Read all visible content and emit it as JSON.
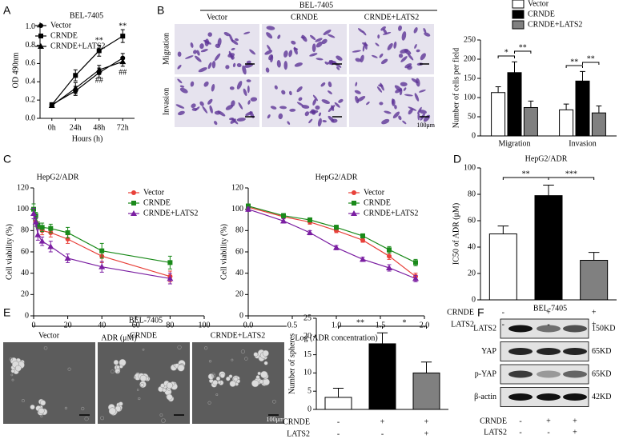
{
  "panel_labels": [
    "A",
    "B",
    "C",
    "D",
    "E",
    "F"
  ],
  "images_B": {
    "title": "BEL-7405",
    "columns": [
      "Vector",
      "CRNDE",
      "CRNDE+LATS2"
    ],
    "rows": [
      "Migration",
      "Invasion"
    ],
    "scale": "100μm"
  },
  "images_E": {
    "title": "BEL-7405",
    "columns": [
      "Vector",
      "CRNDE",
      "CRNDE+LATS2"
    ],
    "scale": "100μm"
  },
  "blot": {
    "title": "BEL-7405",
    "proteins": [
      "LATS2",
      "YAP",
      "p-YAP",
      "β-actin"
    ],
    "sizes": [
      "150KD",
      "65KD",
      "65KD",
      "42KD"
    ],
    "conditions": [
      {
        "name": "CRNDE",
        "marks": [
          "-",
          "+",
          "+"
        ]
      },
      {
        "name": "LATS2",
        "marks": [
          "-",
          "-",
          "+"
        ]
      }
    ]
  },
  "chart_data": [
    {
      "type": "line",
      "title": "BEL-7405",
      "xlabel": "Hours (h)",
      "ylabel": "OD 490nm",
      "categories": [
        "0h",
        "24h",
        "48h",
        "72h"
      ],
      "ylim": [
        0,
        1.05
      ],
      "yticks": [
        {
          "value": 0,
          "label": "0.0"
        },
        0.2,
        0.4,
        0.6,
        0.8,
        {
          "value": 1,
          "label": "1.0"
        }
      ],
      "legend": "upper left",
      "series": [
        {
          "name": "Vector",
          "color": "#000000",
          "marker": "circle",
          "values": [
            0.15,
            0.3,
            0.5,
            0.66
          ],
          "errors": [
            0.02,
            0.05,
            0.05,
            0.05
          ]
        },
        {
          "name": "CRNDE",
          "color": "#000000",
          "marker": "square",
          "values": [
            0.15,
            0.47,
            0.74,
            0.9
          ],
          "errors": [
            0.02,
            0.06,
            0.06,
            0.07
          ]
        },
        {
          "name": "CRNDE+LATS2",
          "color": "#000000",
          "marker": "triangle",
          "values": [
            0.14,
            0.33,
            0.53,
            0.62
          ],
          "errors": [
            0.02,
            0.06,
            0.05,
            0.05
          ]
        }
      ],
      "annotations": [
        "**",
        "**",
        "##",
        "##"
      ]
    },
    {
      "type": "bar",
      "ylabel": "Number of cells per field",
      "categories": [
        "Migration",
        "Invasion"
      ],
      "ylim": [
        0,
        250
      ],
      "yticks": [
        0,
        50,
        100,
        150,
        200,
        250
      ],
      "legend": "upper right",
      "series": [
        {
          "name": "Vector",
          "color": "#ffffff",
          "values": [
            113,
            68
          ],
          "errors": [
            15,
            15
          ]
        },
        {
          "name": "CRNDE",
          "color": "#000000",
          "values": [
            165,
            143
          ],
          "errors": [
            28,
            25
          ]
        },
        {
          "name": "CRNDE+LATS2",
          "color": "#808080",
          "values": [
            74,
            60
          ],
          "errors": [
            17,
            18
          ]
        }
      ],
      "significance": [
        "*",
        "**",
        "**",
        "**"
      ]
    },
    {
      "type": "line",
      "title": "HepG2/ADR",
      "xlabel": "ADR (μM)",
      "ylabel": "Cell viability (%)",
      "x": [
        0,
        1.25,
        2.5,
        5,
        10,
        20,
        40,
        80
      ],
      "xlim": [
        0,
        100
      ],
      "xticks": [
        0,
        20,
        40,
        60,
        80,
        100
      ],
      "ylim": [
        0,
        120
      ],
      "yticks": [
        0,
        20,
        40,
        60,
        80,
        100,
        120
      ],
      "legend": "upper right",
      "series": [
        {
          "name": "Vector",
          "color": "#e8413a",
          "marker": "circle",
          "values": [
            100,
            88,
            84,
            80,
            78,
            72,
            56,
            37
          ],
          "errors": [
            5,
            4,
            3,
            4,
            4,
            4,
            6,
            5
          ]
        },
        {
          "name": "CRNDE",
          "color": "#1a8a1a",
          "marker": "square",
          "values": [
            100,
            94,
            85,
            83,
            82,
            78,
            61,
            50
          ],
          "errors": [
            5,
            3,
            3,
            4,
            4,
            5,
            7,
            6
          ]
        },
        {
          "name": "CRNDE+LATS2",
          "color": "#7b1fa2",
          "marker": "triangle",
          "values": [
            96,
            88,
            76,
            70,
            65,
            54,
            46,
            35
          ],
          "errors": [
            5,
            4,
            5,
            4,
            5,
            4,
            5,
            5
          ]
        }
      ]
    },
    {
      "type": "line",
      "xlabel": "Log (ADR concentration)",
      "ylabel": "Cell viability (%)",
      "x": [
        0,
        0.4,
        0.7,
        1,
        1.3,
        1.6,
        1.9
      ],
      "xlim": [
        0,
        2
      ],
      "xticks": [
        {
          "value": 0,
          "label": "0.0"
        },
        0.5,
        {
          "value": 1,
          "label": "1.0"
        },
        1.5,
        {
          "value": 2,
          "label": "2.0"
        }
      ],
      "ylim": [
        0,
        120
      ],
      "yticks": [
        0,
        20,
        40,
        60,
        80,
        100,
        120
      ],
      "legend": "upper right",
      "title": "HepG2/ADR",
      "series": [
        {
          "name": "Vector",
          "color": "#e8413a",
          "marker": "circle",
          "values": [
            102,
            93,
            88,
            80,
            71,
            56,
            37
          ],
          "errors": [
            2,
            2,
            2,
            2,
            2,
            3,
            3
          ]
        },
        {
          "name": "CRNDE",
          "color": "#1a8a1a",
          "marker": "square",
          "values": [
            103,
            94,
            90,
            83,
            75,
            62,
            50
          ],
          "errors": [
            2,
            2,
            2,
            2,
            2,
            3,
            3
          ]
        },
        {
          "name": "CRNDE+LATS2",
          "color": "#7b1fa2",
          "marker": "triangle",
          "values": [
            100,
            89,
            78,
            64,
            53,
            45,
            35
          ],
          "errors": [
            2,
            2,
            2,
            2,
            2,
            3,
            3
          ]
        }
      ]
    },
    {
      "type": "bar",
      "title": "HepG2/ADR",
      "ylabel": "IC50 of ADR (μM)",
      "values": [
        50,
        79,
        30
      ],
      "errors": [
        6,
        8,
        6
      ],
      "colors": [
        "#ffffff",
        "#000000",
        "#808080"
      ],
      "ylim": [
        0,
        100
      ],
      "yticks": [
        0,
        20,
        40,
        60,
        80,
        100
      ],
      "conditions": [
        {
          "name": "CRNDE",
          "marks": [
            "-",
            "+",
            "+"
          ]
        },
        {
          "name": "LATS2",
          "marks": [
            "-",
            "-",
            "+"
          ]
        }
      ],
      "significance": [
        "**",
        "***"
      ]
    },
    {
      "type": "bar",
      "ylabel": "Number of spheres",
      "values": [
        3.3,
        18,
        10
      ],
      "errors": [
        2.5,
        3,
        3
      ],
      "colors": [
        "#ffffff",
        "#000000",
        "#808080"
      ],
      "ylim": [
        0,
        25
      ],
      "yticks": [
        0,
        5,
        10,
        15,
        20,
        25
      ],
      "conditions": [
        {
          "name": "CRNDE",
          "marks": [
            "-",
            "+",
            "+"
          ]
        },
        {
          "name": "LATS2",
          "marks": [
            "-",
            "-",
            "+"
          ]
        }
      ],
      "significance": [
        "**",
        "*"
      ]
    }
  ]
}
